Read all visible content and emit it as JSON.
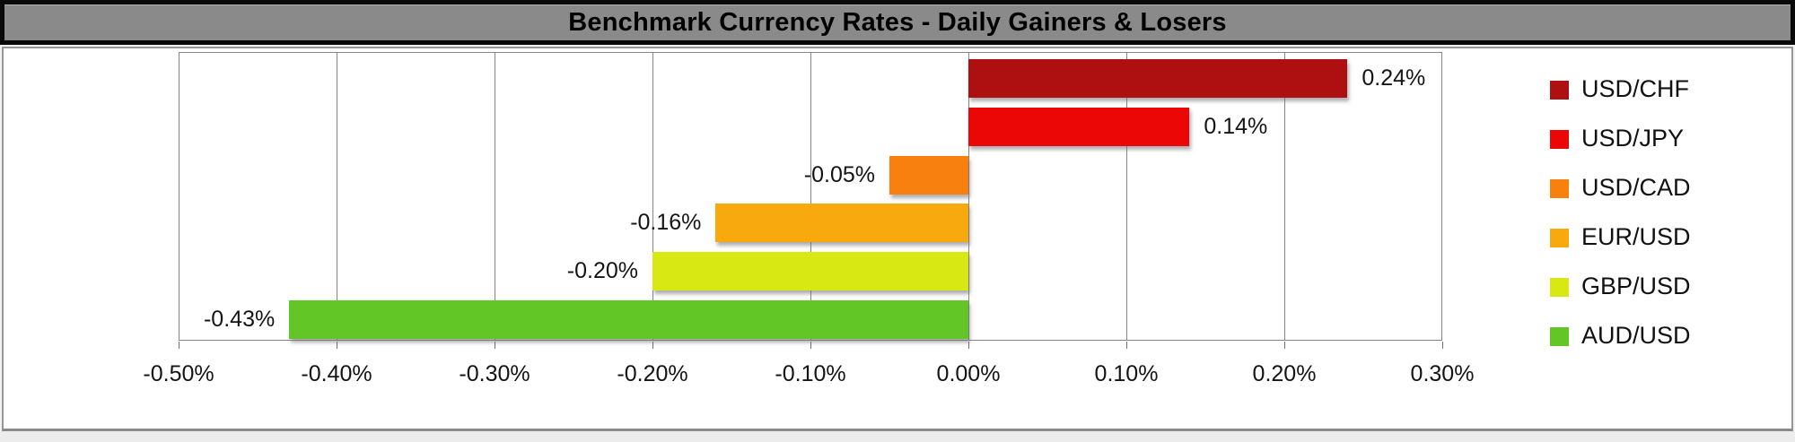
{
  "window": {
    "title": "Benchmark Currency Rates - Daily Gainers & Losers"
  },
  "chart_data": {
    "type": "bar",
    "orientation": "horizontal",
    "title": "Benchmark Currency Rates - Daily Gainers & Losers",
    "categories": [
      "USD/CHF",
      "USD/JPY",
      "USD/CAD",
      "EUR/USD",
      "GBP/USD",
      "AUD/USD"
    ],
    "values": [
      0.24,
      0.14,
      -0.05,
      -0.16,
      -0.2,
      -0.43
    ],
    "value_labels": [
      "0.24%",
      "0.14%",
      "-0.05%",
      "-0.16%",
      "-0.20%",
      "-0.43%"
    ],
    "bar_colors": [
      "#AE1011",
      "#EC0707",
      "#F8800F",
      "#F7A90D",
      "#D8E812",
      "#62C627"
    ],
    "x_ticks": [
      {
        "value": -0.5,
        "label": "-0.50%"
      },
      {
        "value": -0.4,
        "label": "-0.40%"
      },
      {
        "value": -0.3,
        "label": "-0.30%"
      },
      {
        "value": -0.2,
        "label": "-0.20%"
      },
      {
        "value": -0.1,
        "label": "-0.10%"
      },
      {
        "value": 0.0,
        "label": "0.00%"
      },
      {
        "value": 0.1,
        "label": "0.10%"
      },
      {
        "value": 0.2,
        "label": "0.20%"
      },
      {
        "value": 0.3,
        "label": "0.30%"
      }
    ],
    "xlim": [
      -0.5,
      0.3
    ],
    "grid": true,
    "legend_position": "right",
    "legend": [
      "USD/CHF",
      "USD/JPY",
      "USD/CAD",
      "EUR/USD",
      "GBP/USD",
      "AUD/USD"
    ]
  },
  "colors": {
    "title_bar_bg": "#8A8A8A",
    "title_text": "#000000",
    "title_border": "#0A0A0A",
    "chart_bg": "#FFFFFF",
    "chart_border": "#979797",
    "gridline": "#858585"
  }
}
